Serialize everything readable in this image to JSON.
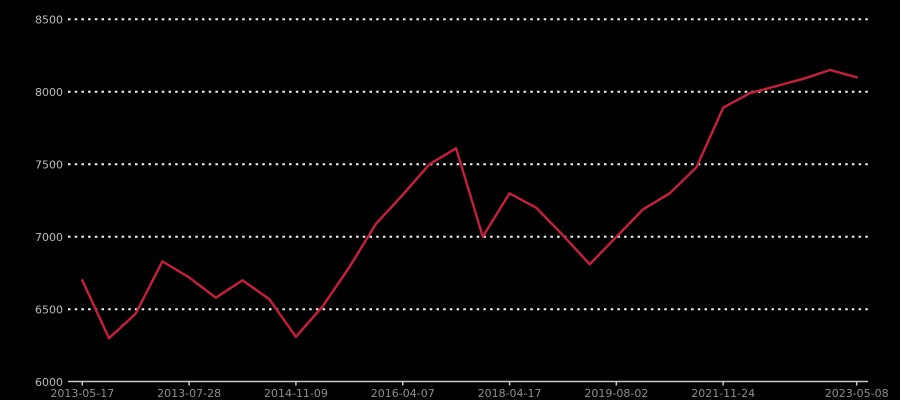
{
  "chart_data": {
    "type": "line",
    "title": "",
    "xlabel": "",
    "ylabel": "",
    "x_tick_labels": [
      "2013-05-17",
      "2013-07-28",
      "2014-11-09",
      "2016-04-07",
      "2018-04-17",
      "2019-08-02",
      "2021-11-24",
      "2023-05-08"
    ],
    "x_tick_indices": [
      0,
      4,
      8,
      12,
      16,
      20,
      24,
      29
    ],
    "values": [
      6700,
      6300,
      6470,
      6830,
      6720,
      6580,
      6700,
      6570,
      6310,
      6520,
      6790,
      7090,
      7290,
      7500,
      7610,
      7000,
      7300,
      7200,
      7010,
      6810,
      7000,
      7190,
      7300,
      7480,
      7890,
      7990,
      8040,
      8090,
      8150,
      8100
    ],
    "y_ticks": [
      6000,
      6500,
      7000,
      7500,
      8000,
      8500
    ],
    "ylim": [
      6000,
      8500
    ],
    "grid": "horizontal-dotted",
    "legend": "none",
    "colors": {
      "background": "#000000",
      "line": "#c8203a",
      "grid_dots": "#f5f5f5",
      "axis": "#c9c9c9",
      "y_tick_text": "#bbbbbb",
      "x_tick_text": "#8f8f8f"
    }
  }
}
